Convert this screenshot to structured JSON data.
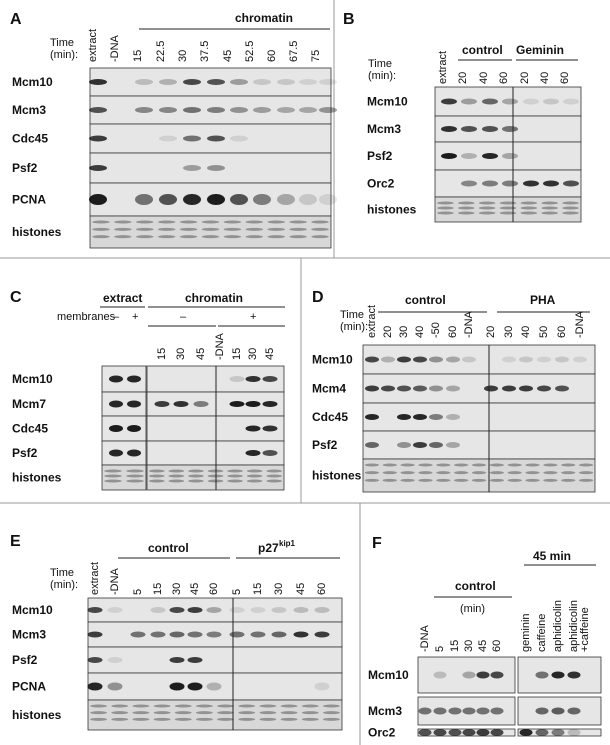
{
  "panels": {
    "A": {
      "label": "A",
      "time_label": [
        "Time",
        "(min):"
      ],
      "group": "chromatin",
      "lanes": [
        "extract",
        "-DNA",
        "15",
        "22.5",
        "30",
        "37.5",
        "45",
        "52.5",
        "60",
        "67.5",
        "75"
      ],
      "rows": [
        "Mcm10",
        "Mcm3",
        "Cdc45",
        "Psf2",
        "PCNA",
        "histones"
      ]
    },
    "B": {
      "label": "B",
      "time_label": [
        "Time",
        "(min):"
      ],
      "groups": [
        "control",
        "Geminin"
      ],
      "lanes": [
        "extract",
        "20",
        "40",
        "60",
        "20",
        "40",
        "60"
      ],
      "rows": [
        "Mcm10",
        "Mcm3",
        "Psf2",
        "Orc2",
        "histones"
      ]
    },
    "C": {
      "label": "C",
      "extract_header": "extract",
      "membranes_label": "membranes",
      "extract_signs": [
        "–",
        "+"
      ],
      "group": "chromatin",
      "chromatin_signs": [
        "–",
        "+"
      ],
      "lanes": [
        "15",
        "30",
        "45",
        "-DNA",
        "15",
        "30",
        "45"
      ],
      "rows": [
        "Mcm10",
        "Mcm7",
        "Cdc45",
        "Psf2",
        "histones"
      ]
    },
    "D": {
      "label": "D",
      "time_label": [
        "Time",
        "(min):"
      ],
      "groups": [
        "control",
        "PHA"
      ],
      "lanes": [
        "extract",
        "20",
        "30",
        "40",
        "-50",
        "60",
        "-DNA",
        "20",
        "30",
        "40",
        "50",
        "60",
        "-DNA"
      ],
      "rows": [
        "Mcm10",
        "Mcm4",
        "Cdc45",
        "Psf2",
        "histones"
      ]
    },
    "E": {
      "label": "E",
      "time_label": [
        "Time",
        "(min):"
      ],
      "groups": [
        "control",
        "p27"
      ],
      "group2_sup": "kip1",
      "lanes": [
        "extract",
        "-DNA",
        "5",
        "15",
        "30",
        "45",
        "60",
        "5",
        "15",
        "30",
        "45",
        "60"
      ],
      "rows": [
        "Mcm10",
        "Mcm3",
        "Psf2",
        "PCNA",
        "histones"
      ]
    },
    "F": {
      "label": "F",
      "groups": [
        "control",
        "45 min"
      ],
      "unit": "(min)",
      "lanes": [
        "-DNA",
        "5",
        "15",
        "30",
        "45",
        "60",
        "geminin",
        "caffeine",
        "aphidicolin",
        "aphidicolin"
      ],
      "lane_extra": "+caffeine",
      "rows": [
        "Mcm10",
        "Mcm3",
        "Orc2"
      ]
    }
  }
}
